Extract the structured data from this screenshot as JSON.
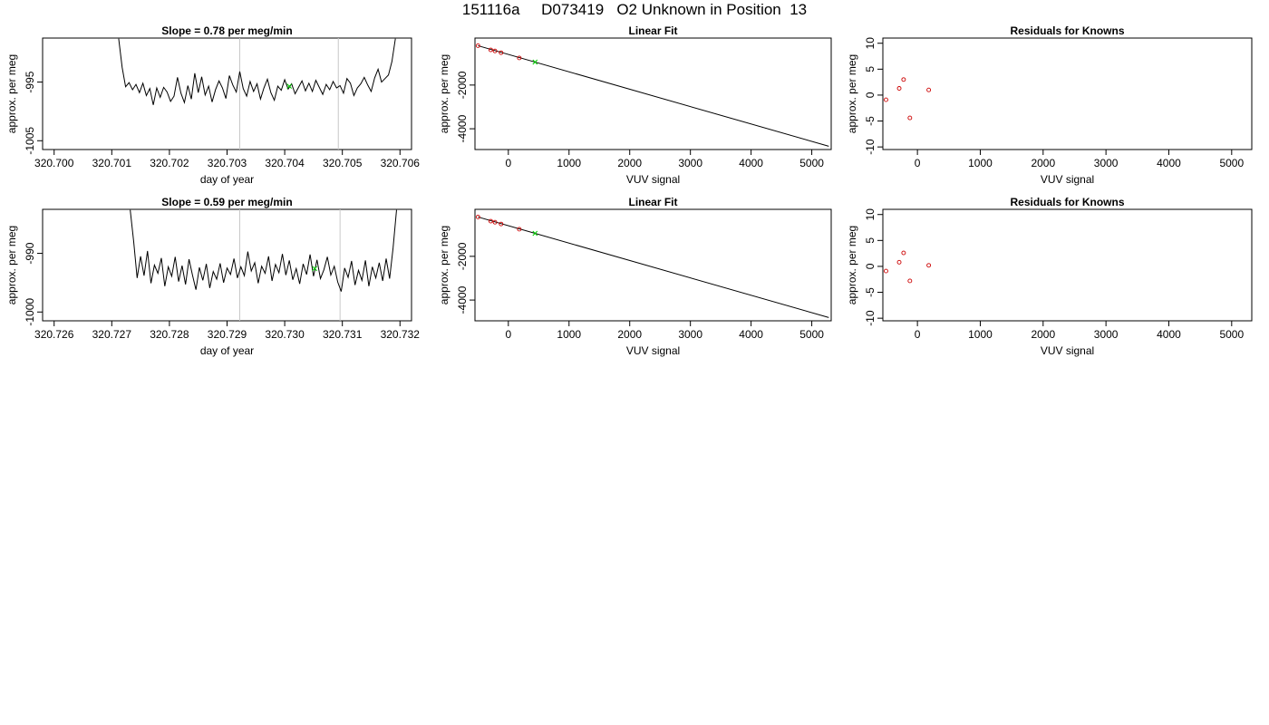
{
  "page_title": "151116a     D073419   O2 Unknown in Position  13",
  "chart_data": [
    {
      "id": "ts1",
      "type": "line",
      "title": "Slope =  0.78  per meg/min",
      "xlabel": "day of year",
      "ylabel": "approx. per meg",
      "xlim": [
        320.6998,
        320.7062
      ],
      "ylim": [
        -1006.5,
        -987.5
      ],
      "xticks": [
        "320.700",
        "320.701",
        "320.702",
        "320.703",
        "320.704",
        "320.705",
        "320.706"
      ],
      "xtick_values": [
        320.7,
        320.701,
        320.702,
        320.703,
        320.704,
        320.705,
        320.706
      ],
      "yticks": [
        "-1005",
        "-995"
      ],
      "ytick_values": [
        -1005,
        -995
      ],
      "vlines": [
        320.70322,
        320.70493
      ],
      "series": [
        {
          "color": "#000000",
          "x": [
            320.70112,
            320.70118,
            320.70124,
            320.7013,
            320.70136,
            320.70142,
            320.70148,
            320.70154,
            320.7016,
            320.70166,
            320.70172,
            320.70178,
            320.70184,
            320.7019,
            320.70196,
            320.70202,
            320.70208,
            320.70214,
            320.7022,
            320.70226,
            320.70232,
            320.70238,
            320.70244,
            320.7025,
            320.70256,
            320.70262,
            320.70268,
            320.70274,
            320.7028,
            320.70286,
            320.70292,
            320.70298,
            320.70304,
            320.7031,
            320.70316,
            320.70322,
            320.70328,
            320.70334,
            320.7034,
            320.70346,
            320.70352,
            320.70358,
            320.70364,
            320.7037,
            320.70376,
            320.70382,
            320.70388,
            320.70394,
            320.704,
            320.70406,
            320.70412,
            320.70418,
            320.70424,
            320.7043,
            320.70436,
            320.70442,
            320.70448,
            320.70454,
            320.7046,
            320.70466,
            320.70472,
            320.70478,
            320.70484,
            320.7049,
            320.70496,
            320.70502,
            320.70508,
            320.70514,
            320.7052,
            320.70526,
            320.70532,
            320.70538,
            320.70544,
            320.7055,
            320.70556,
            320.70562,
            320.70568,
            320.70574,
            320.7058,
            320.70586,
            320.70592
          ],
          "y": [
            -987.6,
            -992.5,
            -995.8,
            -995.1,
            -996.3,
            -995.4,
            -996.8,
            -995.2,
            -997.3,
            -996.1,
            -998.9,
            -996.0,
            -997.6,
            -995.9,
            -996.7,
            -998.3,
            -997.4,
            -994.2,
            -996.9,
            -998.5,
            -995.6,
            -997.9,
            -993.5,
            -996.8,
            -994.1,
            -997.2,
            -995.7,
            -998.4,
            -996.3,
            -994.8,
            -996.0,
            -997.8,
            -993.9,
            -995.5,
            -996.7,
            -993.2,
            -996.1,
            -997.4,
            -994.9,
            -996.6,
            -995.3,
            -997.9,
            -996.0,
            -994.5,
            -996.8,
            -998.1,
            -995.7,
            -996.4,
            -994.6,
            -996.2,
            -995.3,
            -997.0,
            -995.9,
            -994.8,
            -996.5,
            -995.2,
            -996.6,
            -994.7,
            -995.9,
            -997.1,
            -995.4,
            -996.3,
            -994.9,
            -996.0,
            -995.6,
            -996.9,
            -994.4,
            -995.2,
            -997.3,
            -996.0,
            -995.3,
            -994.2,
            -995.5,
            -996.6,
            -994.3,
            -992.8,
            -995.0,
            -994.4,
            -993.8,
            -991.5,
            -987.6
          ]
        }
      ],
      "marker": {
        "x": 320.70408,
        "y": -995.7,
        "color": "#00cc00",
        "shape": "x"
      }
    },
    {
      "id": "fit1",
      "type": "scatter",
      "title": "Linear Fit",
      "xlabel": "VUV signal",
      "ylabel": "approx. per meg",
      "xlim": [
        -550,
        5320
      ],
      "ylim": [
        -4950,
        150
      ],
      "xticks": [
        "0",
        "1000",
        "2000",
        "3000",
        "4000",
        "5000"
      ],
      "xtick_values": [
        0,
        1000,
        2000,
        3000,
        4000,
        5000
      ],
      "yticks": [
        "-4000",
        "-2000"
      ],
      "yticks_values": [
        -4000,
        -2000
      ],
      "fit_line": {
        "x": [
          -500,
          5280
        ],
        "y": [
          -200,
          -4800
        ]
      },
      "points": {
        "color": "#cc0000",
        "x": [
          -500,
          -290,
          -220,
          -120,
          180
        ],
        "y": [
          -200,
          -390,
          -440,
          -520,
          -760
        ]
      },
      "unknown": {
        "x": 440,
        "y": -950,
        "color": "#00cc00"
      }
    },
    {
      "id": "res1",
      "type": "scatter",
      "title": "Residuals for Knowns",
      "xlabel": "VUV signal",
      "ylabel": "approx. per meg",
      "xlim": [
        -550,
        5320
      ],
      "ylim": [
        -10.5,
        11
      ],
      "xticks": [
        "0",
        "1000",
        "2000",
        "3000",
        "4000",
        "5000"
      ],
      "xtick_values": [
        0,
        1000,
        2000,
        3000,
        4000,
        5000
      ],
      "yticks": [
        "-10",
        "-5",
        "0",
        "5",
        "10"
      ],
      "ytick_values": [
        -10,
        -5,
        0,
        5,
        10
      ],
      "points": {
        "color": "#cc0000",
        "x": [
          -500,
          -290,
          -220,
          -120,
          180
        ],
        "y": [
          -0.9,
          1.3,
          3.0,
          -4.4,
          1.0
        ]
      }
    },
    {
      "id": "ts2",
      "type": "line",
      "title": "Slope =  0.59  per meg/min",
      "xlabel": "day of year",
      "ylabel": "approx. per meg",
      "xlim": [
        320.7258,
        320.7322
      ],
      "ylim": [
        -1001.5,
        -982.5
      ],
      "xticks": [
        "320.726",
        "320.727",
        "320.728",
        "320.729",
        "320.730",
        "320.731",
        "320.732"
      ],
      "xtick_values": [
        320.726,
        320.727,
        320.728,
        320.729,
        320.73,
        320.731,
        320.732
      ],
      "yticks": [
        "-1000",
        "-990"
      ],
      "ytick_values": [
        -1000,
        -990
      ],
      "vlines": [
        320.72922,
        320.73096
      ],
      "series": [
        {
          "color": "#000000",
          "x": [
            320.72732,
            320.72738,
            320.72744,
            320.7275,
            320.72756,
            320.72762,
            320.72768,
            320.72774,
            320.7278,
            320.72786,
            320.72792,
            320.72798,
            320.72804,
            320.7281,
            320.72816,
            320.72822,
            320.72828,
            320.72834,
            320.7284,
            320.72846,
            320.72852,
            320.72858,
            320.72864,
            320.7287,
            320.72876,
            320.72882,
            320.72888,
            320.72894,
            320.729,
            320.72906,
            320.72912,
            320.72918,
            320.72924,
            320.7293,
            320.72936,
            320.72942,
            320.72948,
            320.72954,
            320.7296,
            320.72966,
            320.72972,
            320.72978,
            320.72984,
            320.7299,
            320.72996,
            320.73002,
            320.73008,
            320.73014,
            320.7302,
            320.73026,
            320.73032,
            320.73038,
            320.73044,
            320.7305,
            320.73056,
            320.73062,
            320.73068,
            320.73074,
            320.7308,
            320.73086,
            320.73092,
            320.73098,
            320.73104,
            320.7311,
            320.73116,
            320.73122,
            320.73128,
            320.73134,
            320.7314,
            320.73146,
            320.73152,
            320.73158,
            320.73164,
            320.7317,
            320.73176,
            320.73182,
            320.73188,
            320.73194
          ],
          "y": [
            -982.6,
            -988.0,
            -994.2,
            -990.5,
            -993.8,
            -989.6,
            -995.1,
            -992.0,
            -993.4,
            -990.8,
            -995.6,
            -992.3,
            -993.9,
            -990.6,
            -994.8,
            -992.1,
            -995.3,
            -991.0,
            -993.7,
            -996.2,
            -992.4,
            -994.6,
            -991.8,
            -995.9,
            -993.1,
            -994.4,
            -991.7,
            -995.0,
            -992.5,
            -993.6,
            -990.9,
            -994.2,
            -992.3,
            -993.8,
            -989.7,
            -993.0,
            -991.6,
            -995.1,
            -992.2,
            -993.4,
            -990.5,
            -994.7,
            -991.9,
            -993.3,
            -990.1,
            -993.7,
            -991.2,
            -994.5,
            -992.6,
            -995.2,
            -991.8,
            -993.6,
            -990.2,
            -993.9,
            -991.1,
            -994.3,
            -992.8,
            -990.6,
            -993.7,
            -992.2,
            -994.9,
            -996.5,
            -992.5,
            -994.1,
            -991.3,
            -995.4,
            -992.9,
            -994.6,
            -991.2,
            -995.6,
            -992.3,
            -994.2,
            -991.6,
            -994.7,
            -990.9,
            -994.3,
            -989.1,
            -982.6
          ]
        }
      ],
      "marker": {
        "x": 320.73052,
        "y": -992.6,
        "color": "#00cc00",
        "shape": "x"
      }
    },
    {
      "id": "fit2",
      "type": "scatter",
      "title": "Linear Fit",
      "xlabel": "VUV signal",
      "ylabel": "approx. per meg",
      "xlim": [
        -550,
        5320
      ],
      "ylim": [
        -4950,
        150
      ],
      "xticks": [
        "0",
        "1000",
        "2000",
        "3000",
        "4000",
        "5000"
      ],
      "xtick_values": [
        0,
        1000,
        2000,
        3000,
        4000,
        5000
      ],
      "yticks": [
        "-4000",
        "-2000"
      ],
      "yticks_values": [
        -4000,
        -2000
      ],
      "fit_line": {
        "x": [
          -500,
          5280
        ],
        "y": [
          -200,
          -4800
        ]
      },
      "points": {
        "color": "#cc0000",
        "x": [
          -500,
          -290,
          -220,
          -120,
          180
        ],
        "y": [
          -200,
          -390,
          -440,
          -520,
          -760
        ]
      },
      "unknown": {
        "x": 440,
        "y": -950,
        "color": "#00cc00"
      }
    },
    {
      "id": "res2",
      "type": "scatter",
      "title": "Residuals for Knowns",
      "xlabel": "VUV signal",
      "ylabel": "approx. per meg",
      "xlim": [
        -550,
        5320
      ],
      "ylim": [
        -10.5,
        11
      ],
      "xticks": [
        "0",
        "1000",
        "2000",
        "3000",
        "4000",
        "5000"
      ],
      "xtick_values": [
        0,
        1000,
        2000,
        3000,
        4000,
        5000
      ],
      "yticks": [
        "-10",
        "-5",
        "0",
        "5",
        "10"
      ],
      "ytick_values": [
        -10,
        -5,
        0,
        5,
        10
      ],
      "points": {
        "color": "#cc0000",
        "x": [
          -500,
          -290,
          -220,
          -120,
          180
        ],
        "y": [
          -0.9,
          0.8,
          2.6,
          -2.8,
          0.2
        ]
      }
    }
  ]
}
